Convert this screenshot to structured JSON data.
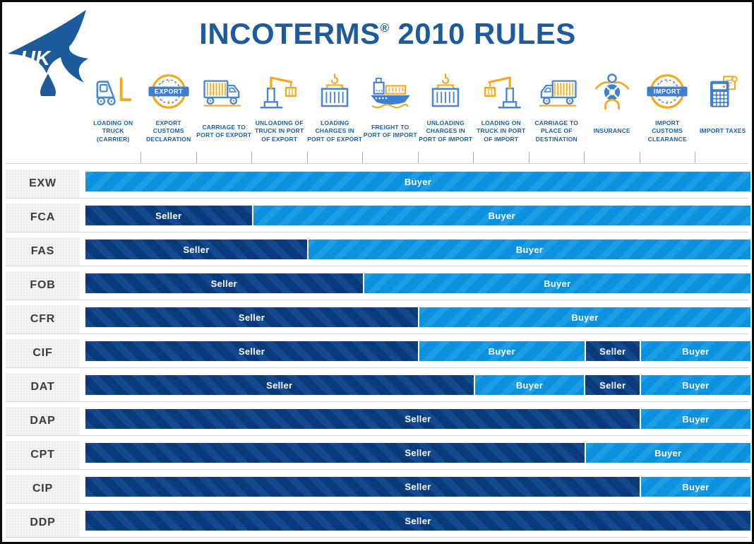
{
  "title": {
    "main": "INCOTERMS",
    "registered": "®",
    "rest": " 2010 RULES"
  },
  "logo": {
    "text": "UK"
  },
  "columns": [
    {
      "label": "LOADING ON TRUCK (CARRIER)",
      "icon": "forklift-icon"
    },
    {
      "label": "EXPORT CUSTOMS DECLARATION",
      "icon": "export-badge-icon",
      "badge_text": "EXPORT"
    },
    {
      "label": "CARRIAGE TO PORT OF EXPORT",
      "icon": "truck-right-icon"
    },
    {
      "label": "UNLOADING OF TRUCK IN PORT OF EXPORT",
      "icon": "crane-unload-icon"
    },
    {
      "label": "LOADING CHARGES IN PORT OF EXPORT",
      "icon": "container-hook-icon"
    },
    {
      "label": "FREIGHT TO PORT OF IMPORT",
      "icon": "cargo-ship-icon"
    },
    {
      "label": "UNLOADING CHARGES IN PORT OF IMPORT",
      "icon": "container-hook-icon"
    },
    {
      "label": "LOADING ON TRUCK IN PORT OF IMPORT",
      "icon": "crane-load-icon"
    },
    {
      "label": "CARRIAGE TO PLACE OF DESTINATION",
      "icon": "truck-left-icon"
    },
    {
      "label": "INSURANCE",
      "icon": "insurance-icon"
    },
    {
      "label": "IMPORT CUSTOMS CLEARANCE",
      "icon": "import-badge-icon",
      "badge_text": "IMPORT"
    },
    {
      "label": "IMPORT TAXES",
      "icon": "calculator-icon"
    }
  ],
  "colors": {
    "title_blue": "#1d5b9d",
    "header_label_blue": "#1d5f9f",
    "icon_blue": "#4a86d8",
    "icon_blue_fill": "#3f7fd1",
    "icon_orange": "#f6a81c",
    "seller_dark": "#0a3a79",
    "seller_stripe": "#12498f",
    "buyer_light": "#0b91de",
    "buyer_stripe": "#1e9ce4",
    "row_label_text": "#3b3b3b",
    "row_label_bg": "#f4f4f4",
    "grid_line": "#cfcfcf"
  },
  "chart_data": {
    "type": "table",
    "title": "INCOTERMS® 2010 RULES",
    "col_count": 12,
    "columns": [
      "LOADING ON TRUCK (CARRIER)",
      "EXPORT CUSTOMS DECLARATION",
      "CARRIAGE TO PORT OF EXPORT",
      "UNLOADING OF TRUCK IN PORT OF EXPORT",
      "LOADING CHARGES IN PORT OF EXPORT",
      "FREIGHT TO PORT OF IMPORT",
      "UNLOADING CHARGES IN PORT OF IMPORT",
      "LOADING ON TRUCK IN PORT OF IMPORT",
      "CARRIAGE TO PLACE OF DESTINATION",
      "INSURANCE",
      "IMPORT CUSTOMS CLEARANCE",
      "IMPORT TAXES"
    ],
    "parties": [
      "Seller",
      "Buyer"
    ],
    "rows": [
      {
        "term": "EXW",
        "segments": [
          {
            "party": "Buyer",
            "from": 0,
            "to": 12
          }
        ]
      },
      {
        "term": "FCA",
        "segments": [
          {
            "party": "Seller",
            "from": 0,
            "to": 3
          },
          {
            "party": "Buyer",
            "from": 3,
            "to": 12
          }
        ]
      },
      {
        "term": "FAS",
        "segments": [
          {
            "party": "Seller",
            "from": 0,
            "to": 4
          },
          {
            "party": "Buyer",
            "from": 4,
            "to": 12
          }
        ]
      },
      {
        "term": "FOB",
        "segments": [
          {
            "party": "Seller",
            "from": 0,
            "to": 5
          },
          {
            "party": "Buyer",
            "from": 5,
            "to": 12
          }
        ]
      },
      {
        "term": "CFR",
        "segments": [
          {
            "party": "Seller",
            "from": 0,
            "to": 6
          },
          {
            "party": "Buyer",
            "from": 6,
            "to": 12
          }
        ]
      },
      {
        "term": "CIF",
        "segments": [
          {
            "party": "Seller",
            "from": 0,
            "to": 6
          },
          {
            "party": "Buyer",
            "from": 6,
            "to": 9
          },
          {
            "party": "Seller",
            "from": 9,
            "to": 10
          },
          {
            "party": "Buyer",
            "from": 10,
            "to": 12
          }
        ]
      },
      {
        "term": "DAT",
        "segments": [
          {
            "party": "Seller",
            "from": 0,
            "to": 7
          },
          {
            "party": "Buyer",
            "from": 7,
            "to": 9
          },
          {
            "party": "Seller",
            "from": 9,
            "to": 10
          },
          {
            "party": "Buyer",
            "from": 10,
            "to": 12
          }
        ]
      },
      {
        "term": "DAP",
        "segments": [
          {
            "party": "Seller",
            "from": 0,
            "to": 10,
            "label_at_bar_center": true
          },
          {
            "party": "Buyer",
            "from": 10,
            "to": 12
          }
        ]
      },
      {
        "term": "CPT",
        "segments": [
          {
            "party": "Seller",
            "from": 0,
            "to": 9,
            "label_at_bar_center": true
          },
          {
            "party": "Buyer",
            "from": 9,
            "to": 12
          }
        ]
      },
      {
        "term": "CIP",
        "segments": [
          {
            "party": "Seller",
            "from": 0,
            "to": 10,
            "label_at_bar_center": true
          },
          {
            "party": "Buyer",
            "from": 10,
            "to": 12
          }
        ]
      },
      {
        "term": "DDP",
        "segments": [
          {
            "party": "Seller",
            "from": 0,
            "to": 12
          }
        ]
      }
    ]
  }
}
